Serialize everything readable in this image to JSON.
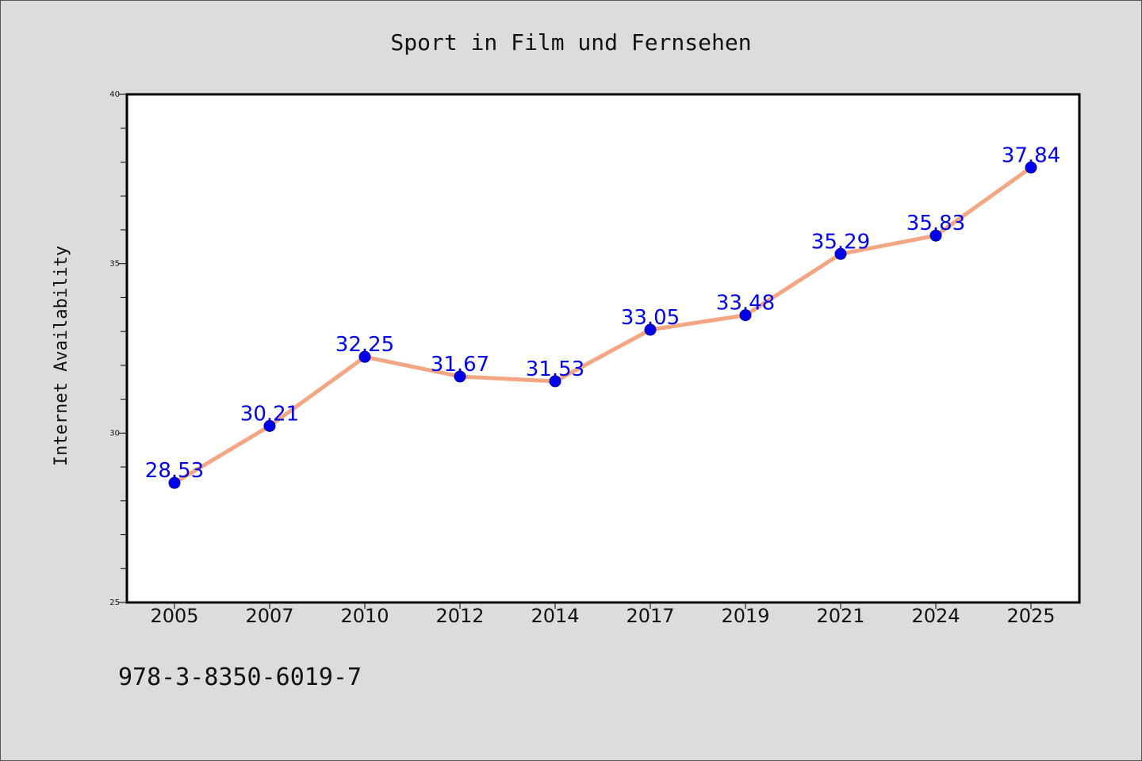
{
  "chart_data": {
    "type": "line",
    "title": "Sport in Film und Fernsehen",
    "xlabel": "",
    "ylabel": "Internet Availability",
    "categories": [
      "2005",
      "2007",
      "2010",
      "2012",
      "2014",
      "2017",
      "2019",
      "2021",
      "2024",
      "2025"
    ],
    "series": [
      {
        "values": [
          28.53,
          30.21,
          32.25,
          31.67,
          31.53,
          33.05,
          33.48,
          35.29,
          35.83,
          37.84
        ],
        "line_color": "#f4a582",
        "marker_color": "#0000ee"
      }
    ],
    "value_labels": [
      "28.53",
      "30.21",
      "32.25",
      "31.67",
      "31.53",
      "33.05",
      "33.48",
      "35.29",
      "35.83",
      "37.84"
    ],
    "ylim": [
      25,
      40
    ],
    "yticks": [
      "25",
      "30",
      "35",
      "40"
    ],
    "ytick_values": [
      25,
      30,
      35,
      40
    ],
    "minor_ytick_step": 1,
    "grid": false,
    "legend": "none",
    "label_color": "#0000ee"
  },
  "footer": {
    "isbn": "978-3-8350-6019-7"
  }
}
